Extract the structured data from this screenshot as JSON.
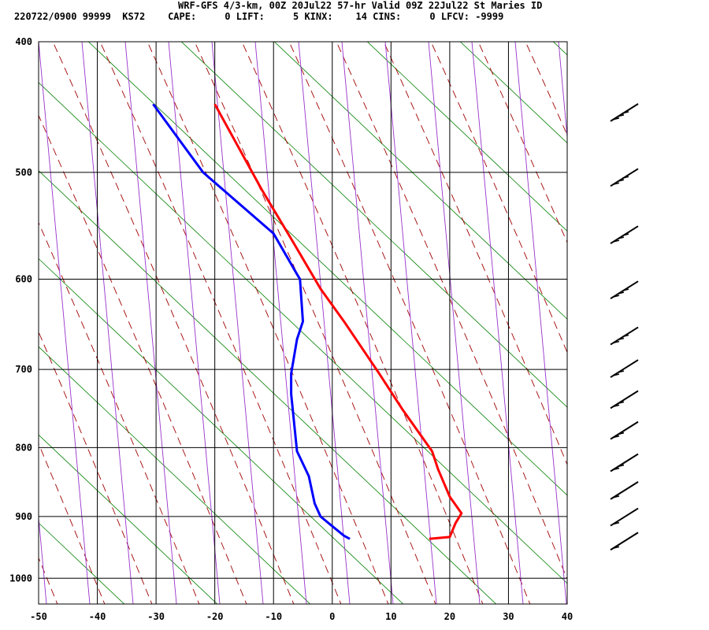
{
  "header": {
    "line1": "WRF-GFS 4/3-km, 00Z 20Jul22 57-hr Valid 09Z 22Jul22 St Maries ID",
    "line2": "220722/0900 99999  KS72    CAPE:     0 LIFT:     5 KINX:    14 CINS:     0 LFCV: -9999"
  },
  "chart_data": {
    "type": "line",
    "title": "WRF-GFS 4/3-km, 00Z 20Jul22 57-hr Valid 09Z 22Jul22 St Maries ID",
    "xlabel": "",
    "ylabel": "",
    "x_ticks": [
      "-50",
      "-40",
      "-30",
      "-20",
      "-10",
      "0",
      "10",
      "20",
      "30",
      "40"
    ],
    "y_ticks": [
      "400",
      "500",
      "600",
      "700",
      "800",
      "900",
      "1000"
    ],
    "xlim": [
      -50,
      40
    ],
    "ylim": [
      1045,
      400
    ],
    "y_scale": "log",
    "grid": true,
    "series": [
      {
        "color": "#ff0000",
        "points": [
          [
            16.5,
            935
          ],
          [
            20,
            932
          ],
          [
            21,
            910
          ],
          [
            22,
            895
          ],
          [
            20,
            870
          ],
          [
            18,
            830
          ],
          [
            17,
            805
          ],
          [
            12,
            750
          ],
          [
            8,
            705
          ],
          [
            2,
            645
          ],
          [
            -2,
            610
          ],
          [
            -7,
            560
          ],
          [
            -12,
            515
          ],
          [
            -20,
            445
          ]
        ]
      },
      {
        "color": "#0000ff",
        "points": [
          [
            3,
            935
          ],
          [
            2,
            930
          ],
          [
            0,
            915
          ],
          [
            -2,
            900
          ],
          [
            -3,
            880
          ],
          [
            -4,
            840
          ],
          [
            -6,
            805
          ],
          [
            -7,
            730
          ],
          [
            -7,
            705
          ],
          [
            -6,
            665
          ],
          [
            -5,
            645
          ],
          [
            -5.5,
            600
          ],
          [
            -6,
            595
          ],
          [
            -10,
            555
          ],
          [
            -22,
            500
          ],
          [
            -30.5,
            445
          ]
        ]
      }
    ],
    "wind_barbs": [
      {
        "p": 452
      },
      {
        "p": 505
      },
      {
        "p": 557
      },
      {
        "p": 612
      },
      {
        "p": 662
      },
      {
        "p": 700
      },
      {
        "p": 738
      },
      {
        "p": 778
      },
      {
        "p": 822
      },
      {
        "p": 862
      },
      {
        "p": 902
      },
      {
        "p": 940
      }
    ]
  }
}
